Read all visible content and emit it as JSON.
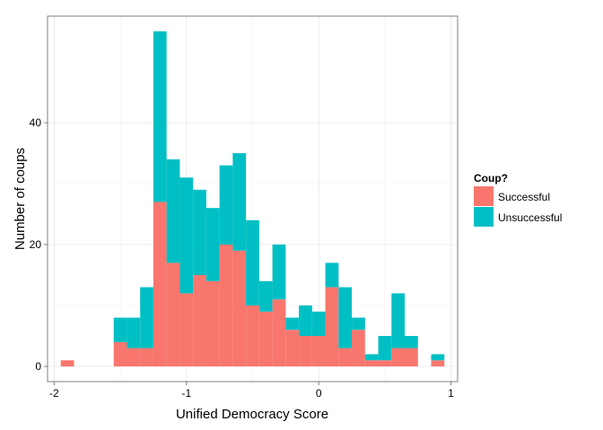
{
  "chart_data": {
    "type": "bar",
    "stacked": true,
    "title": "",
    "xlabel": "Unified Democracy Score",
    "ylabel": "Number of coups",
    "xlim": [
      -2.05,
      1.05
    ],
    "ylim": [
      -2.5,
      57.5
    ],
    "x_ticks": [
      -2,
      -1,
      0,
      1
    ],
    "x_tick_labels": [
      "-2",
      "-1",
      "0",
      "1"
    ],
    "y_ticks": [
      0,
      20,
      40
    ],
    "y_tick_labels": [
      "0",
      "20",
      "40"
    ],
    "grid": true,
    "bin_width": 0.1,
    "x": [
      -1.9,
      -1.8,
      -1.7,
      -1.6,
      -1.5,
      -1.4,
      -1.3,
      -1.2,
      -1.1,
      -1.0,
      -0.9,
      -0.8,
      -0.7,
      -0.6,
      -0.5,
      -0.4,
      -0.3,
      -0.2,
      -0.1,
      0.0,
      0.1,
      0.2,
      0.3,
      0.4,
      0.5,
      0.6,
      0.7,
      0.8,
      0.9
    ],
    "series": [
      {
        "name": "Successful",
        "color": "#F8766D",
        "values": [
          1,
          0,
          0,
          0,
          4,
          3,
          3,
          27,
          17,
          12,
          15,
          14,
          20,
          19,
          10,
          9,
          11,
          6,
          5,
          5,
          13,
          3,
          6,
          1,
          1,
          3,
          3,
          0,
          1
        ]
      },
      {
        "name": "Unsuccessful",
        "color": "#00BFC4",
        "values": [
          0,
          0,
          0,
          0,
          4,
          5,
          10,
          28,
          17,
          19,
          14,
          12,
          13,
          16,
          14,
          5,
          9,
          2,
          5,
          4,
          4,
          10,
          2,
          1,
          4,
          9,
          2,
          0,
          1
        ]
      }
    ],
    "legend": {
      "title": "Coup?",
      "position": "right"
    }
  }
}
